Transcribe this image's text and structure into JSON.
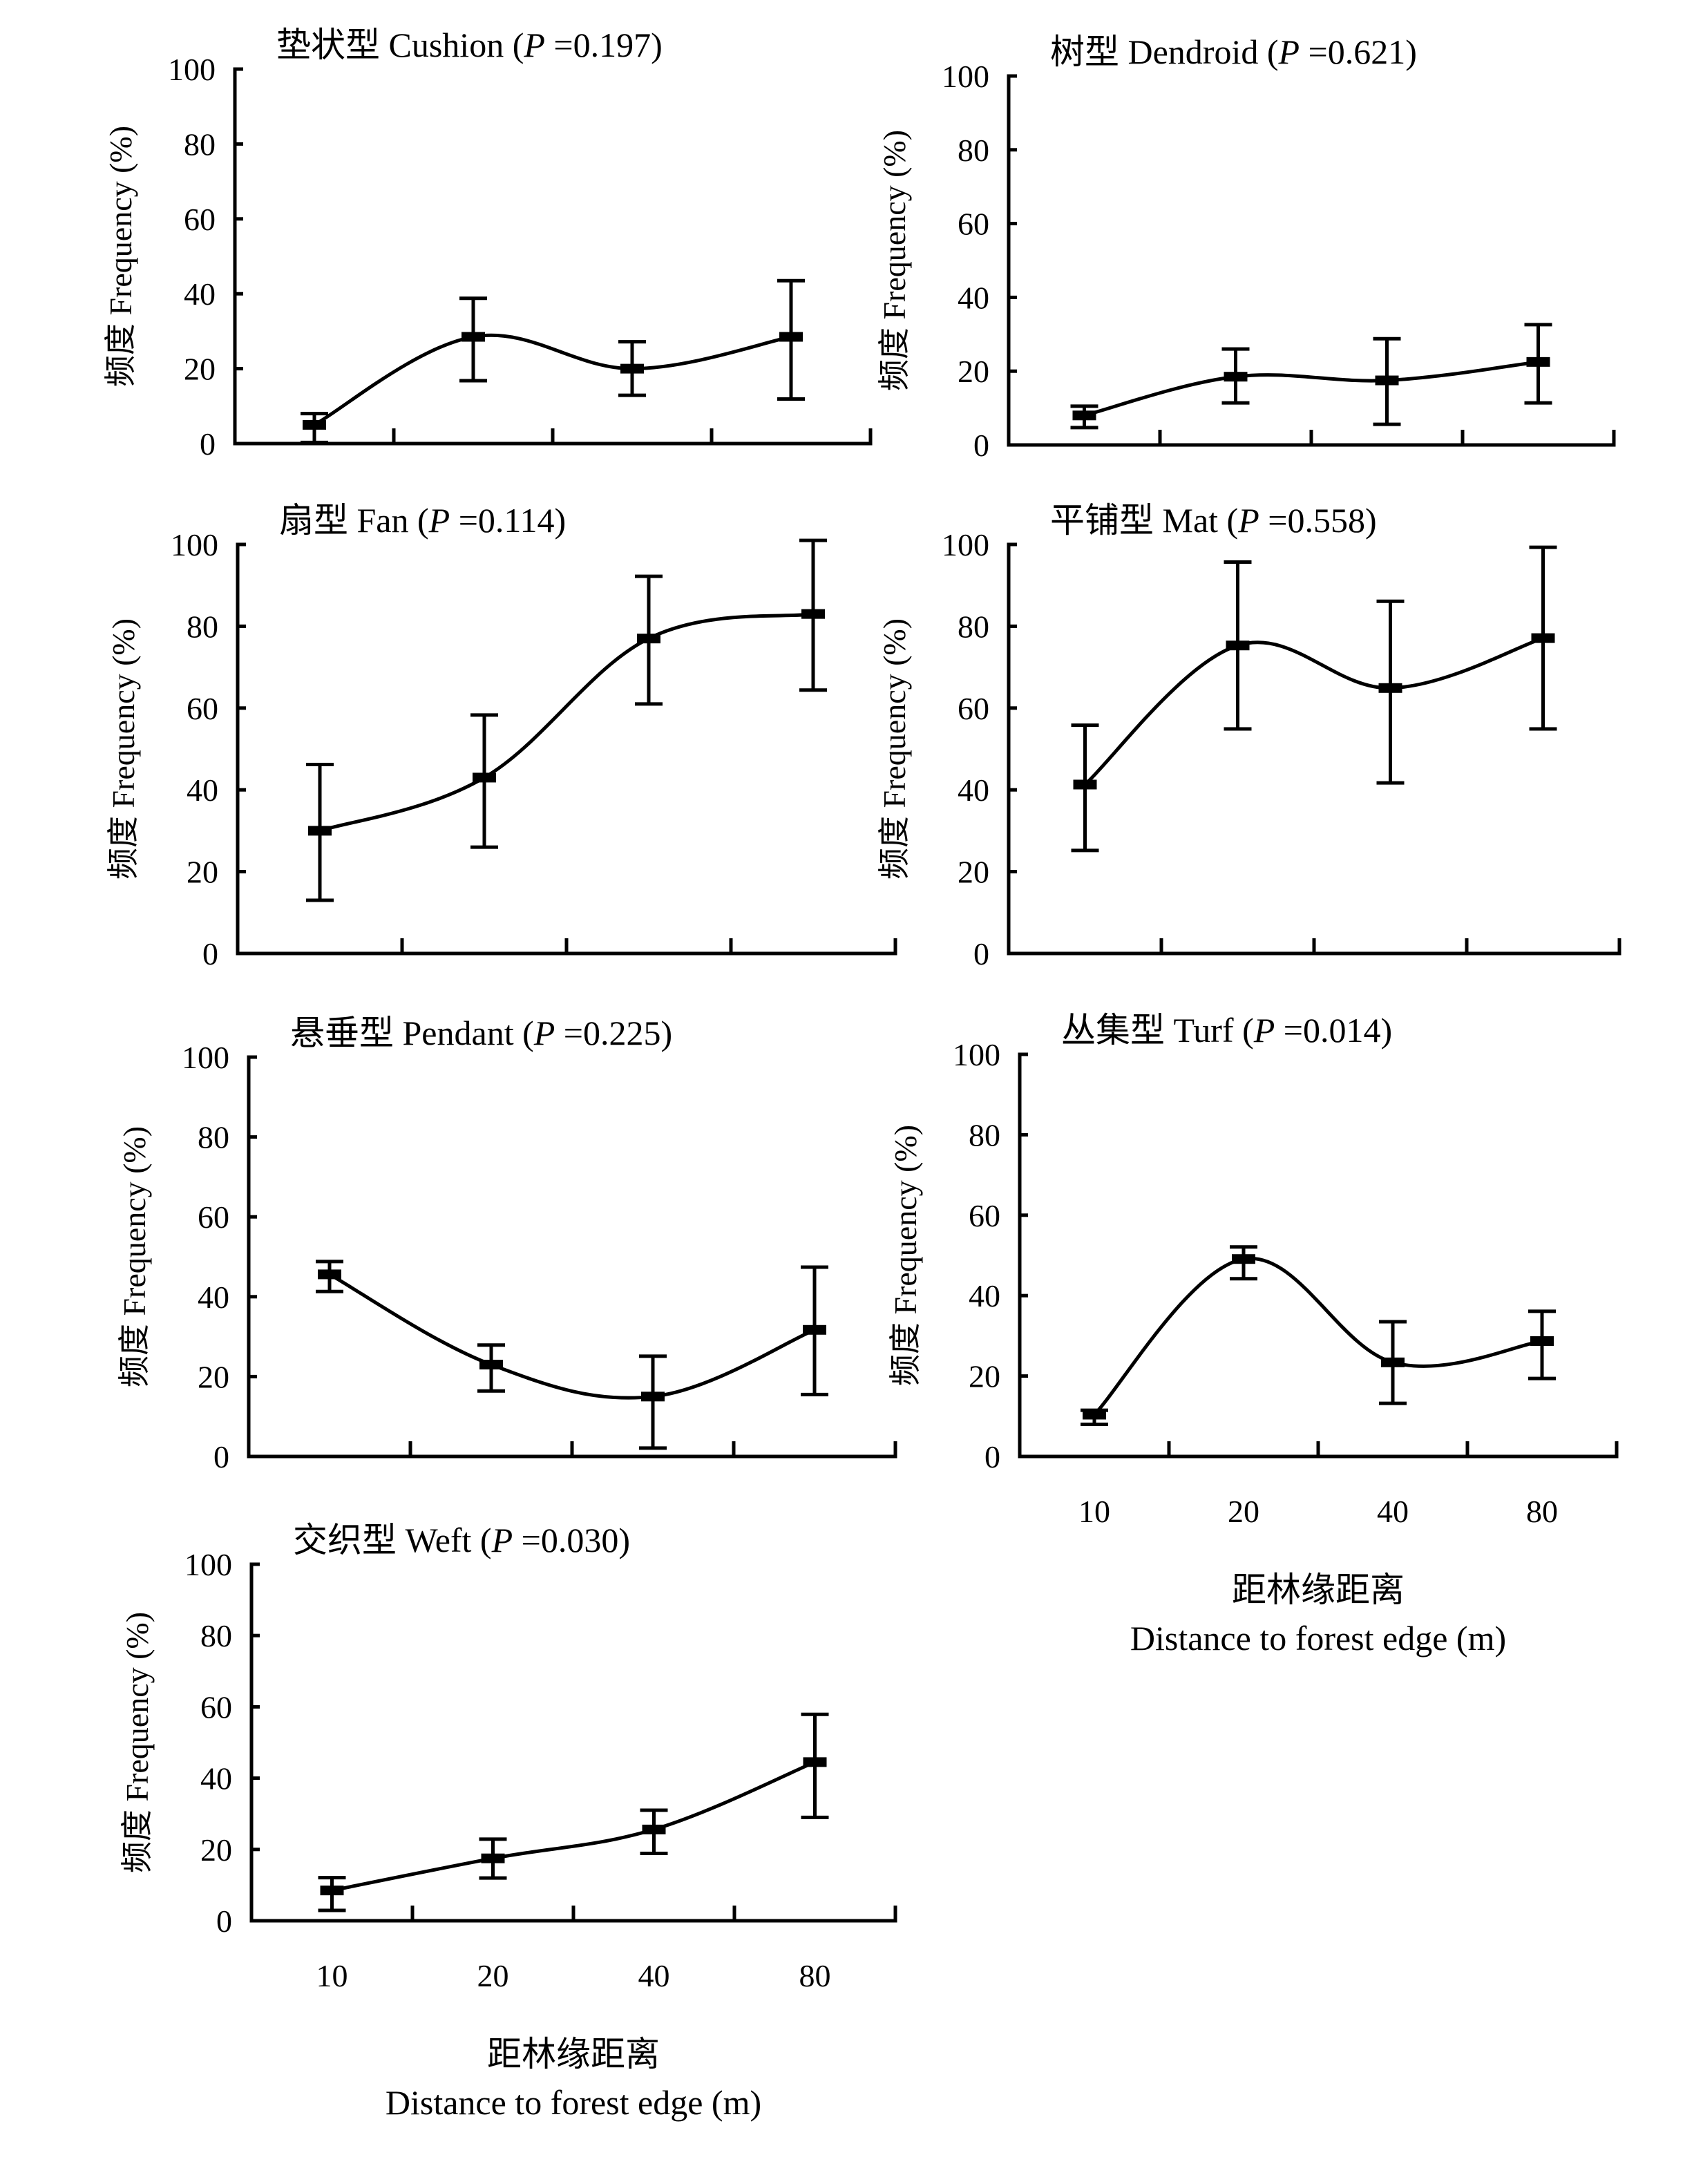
{
  "chart_data": {
    "type": "line",
    "figure": "Frequency of bryophyte life forms vs. distance to forest edge",
    "categories": [
      "10",
      "20",
      "40",
      "80"
    ],
    "xlabel_cn": "距林缘距离",
    "xlabel": "Distance to forest edge (m)",
    "ylabel": "频度 Frequency (%)",
    "ylim": [
      0,
      100
    ],
    "yticks": [
      "0",
      "20",
      "40",
      "60",
      "80",
      "100"
    ],
    "grid": false,
    "legend": "none",
    "panels": [
      {
        "id": "cushion",
        "title_cn": "垫状型",
        "title_en": "Cushion",
        "p_label": "P",
        "p_value": "=0.197",
        "values": [
          5,
          28.5,
          20,
          28.5
        ],
        "err_upper": [
          8,
          38.8,
          27.2,
          43.5
        ],
        "err_lower": [
          0.3,
          16.8,
          12.9,
          11.9
        ],
        "show_xticklabels": false
      },
      {
        "id": "dendroid",
        "title_cn": "树型",
        "title_en": "Dendroid",
        "p_label": "P",
        "p_value": "=0.621",
        "values": [
          8,
          18.5,
          17.5,
          22.5
        ],
        "err_upper": [
          10.5,
          26,
          28.8,
          32.6
        ],
        "err_lower": [
          4.7,
          11.4,
          5.6,
          11.4
        ],
        "show_xticklabels": false
      },
      {
        "id": "fan",
        "title_cn": "扇型",
        "title_en": "Fan",
        "p_label": "P",
        "p_value": "=0.114",
        "values": [
          30,
          43,
          77,
          83
        ],
        "err_upper": [
          46.2,
          58.3,
          92.2,
          101
        ],
        "err_lower": [
          13,
          26,
          61,
          64.4
        ],
        "show_xticklabels": false
      },
      {
        "id": "mat",
        "title_cn": "平铺型",
        "title_en": "Mat",
        "p_label": "P",
        "p_value": "=0.558",
        "values": [
          41.3,
          75.3,
          64.9,
          77.1
        ],
        "err_upper": [
          55.8,
          95.7,
          86.1,
          99.3
        ],
        "err_lower": [
          25.2,
          54.9,
          41.7,
          54.9
        ],
        "show_xticklabels": false
      },
      {
        "id": "pendant",
        "title_cn": "悬垂型",
        "title_en": "Pendant",
        "p_label": "P",
        "p_value": "=0.225",
        "values": [
          45.6,
          23,
          15,
          31.7
        ],
        "err_upper": [
          48.8,
          27.9,
          25.1,
          47.4
        ],
        "err_lower": [
          41.3,
          16.4,
          2.1,
          15.5
        ],
        "show_xticklabels": false
      },
      {
        "id": "turf",
        "title_cn": "丛集型",
        "title_en": "Turf",
        "p_label": "P",
        "p_value": "=0.014",
        "values": [
          10.4,
          49.1,
          23.4,
          28.7
        ],
        "err_upper": [
          11.5,
          52.1,
          33.5,
          36.1
        ],
        "err_lower": [
          8,
          44.2,
          13.2,
          19.4
        ],
        "show_xticklabels": true
      },
      {
        "id": "weft",
        "title_cn": "交织型",
        "title_en": "Weft",
        "p_label": "P",
        "p_value": "=0.030",
        "values": [
          8.5,
          17.5,
          25.6,
          44.5
        ],
        "err_upper": [
          12.1,
          22.9,
          31,
          57.9
        ],
        "err_lower": [
          2.9,
          12,
          18.9,
          29
        ],
        "show_xticklabels": true
      }
    ]
  }
}
